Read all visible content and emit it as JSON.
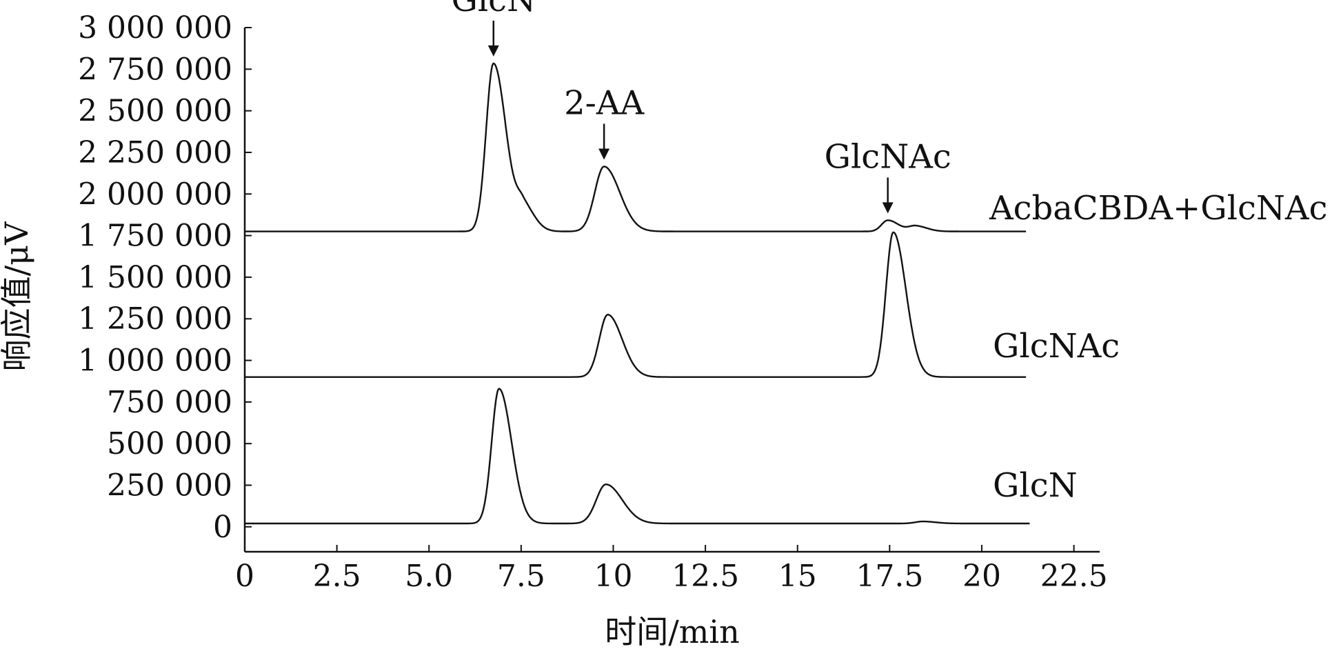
{
  "chart_data": {
    "type": "line",
    "xlabel": "时间/min",
    "ylabel": "响应值/μV",
    "xlim": [
      0,
      23.2
    ],
    "ylim": [
      -150000,
      3000000
    ],
    "x_ticks": [
      0,
      2.5,
      5.0,
      7.5,
      10,
      12.5,
      15,
      17.5,
      20,
      22.5
    ],
    "x_tick_labels": [
      "0",
      "2.5",
      "5.0",
      "7.5",
      "10",
      "12.5",
      "15",
      "17.5",
      "20",
      "22.5"
    ],
    "y_ticks": [
      0,
      250000,
      500000,
      750000,
      1000000,
      1250000,
      1500000,
      1750000,
      2000000,
      2250000,
      2500000,
      2750000,
      3000000
    ],
    "y_tick_labels": [
      "0",
      "250 000",
      "500 000",
      "750 000",
      "1 000 000",
      "1 250 000",
      "1 500 000",
      "1 750 000",
      "2 000 000",
      "2 250 000",
      "2 500 000",
      "2 750 000",
      "3 000 000"
    ],
    "series": [
      {
        "name": "GlcN",
        "x_range": [
          0,
          21.3
        ],
        "baseline": 20000,
        "peaks": [
          {
            "x": 6.9,
            "height": 830000,
            "width": 0.2
          },
          {
            "x": 9.8,
            "height": 255000,
            "width": 0.26
          },
          {
            "x": 18.4,
            "height": 32000,
            "width": 0.2
          }
        ]
      },
      {
        "name": "GlcNAc",
        "x_range": [
          0,
          21.2
        ],
        "baseline": 900000,
        "peaks": [
          {
            "x": 9.85,
            "height": 1275000,
            "width": 0.23
          },
          {
            "x": 17.6,
            "height": 1770000,
            "width": 0.2
          }
        ]
      },
      {
        "name": "AcbaCBDA+GlcNAc",
        "x_range": [
          0,
          21.2
        ],
        "baseline": 1775000,
        "peaks": [
          {
            "x": 6.75,
            "height": 2785000,
            "width": 0.2
          },
          {
            "x": 7.55,
            "height": 1925000,
            "width": 0.18
          },
          {
            "x": 9.75,
            "height": 2165000,
            "width": 0.25
          },
          {
            "x": 17.45,
            "height": 1842000,
            "width": 0.17
          },
          {
            "x": 18.2,
            "height": 1808000,
            "width": 0.18
          }
        ]
      }
    ],
    "annotations": [
      {
        "label": "GlcN",
        "x": 6.75,
        "y": 2785000
      },
      {
        "label": "2-AA",
        "x": 9.75,
        "y": 2165000
      },
      {
        "label": "GlcNAc",
        "x": 17.45,
        "y": 1842000
      }
    ],
    "grid": false,
    "legend": "none"
  }
}
